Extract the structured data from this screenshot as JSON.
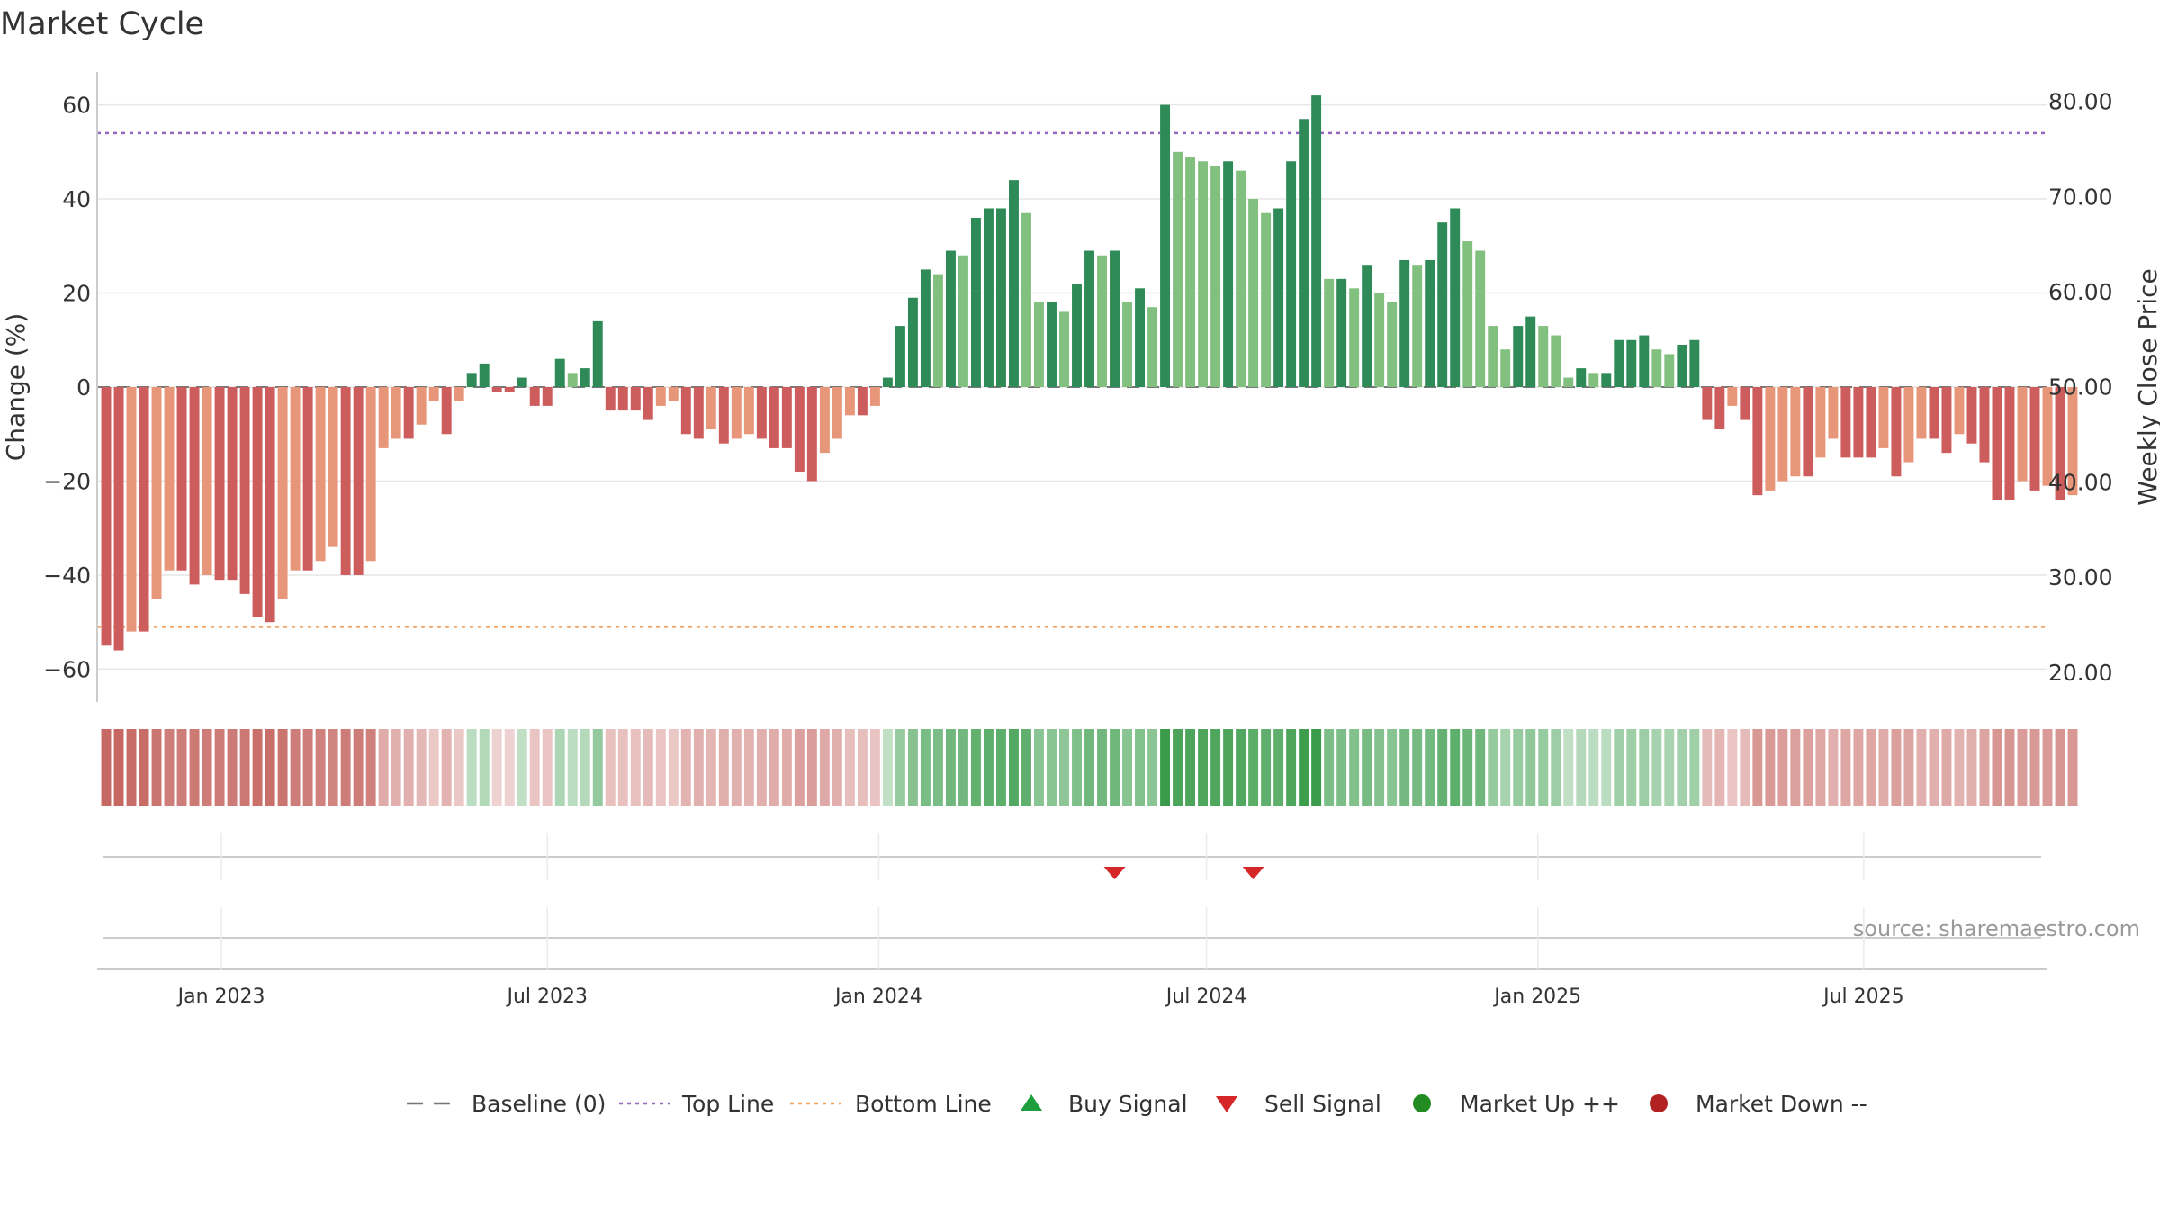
{
  "chart_data": {
    "type": "bar",
    "title": "Market Cycle",
    "ylabel_left": "Change (%)",
    "ylabel_right": "Weekly Close Price",
    "source": "source: sharemaestro.com",
    "ylim": [
      -67,
      67
    ],
    "yticks": [
      60,
      40,
      20,
      0,
      -20,
      -40,
      -60
    ],
    "ytick_labels": [
      "60",
      "40",
      "20",
      "0",
      "−20",
      "−40",
      "−60"
    ],
    "y2lim": [
      16.86,
      83.09
    ],
    "y2ticks": [
      80,
      70,
      60,
      50,
      40,
      30,
      20
    ],
    "y2tick_labels": [
      "80.00",
      "70.00",
      "60.00",
      "50.00",
      "40.00",
      "30.00",
      "20.00"
    ],
    "x_range": [
      "2022-10-24",
      "2025-10-11"
    ],
    "xticks": [
      "2023-01-01",
      "2023-07-01",
      "2024-01-01",
      "2024-07-01",
      "2025-01-01",
      "2025-07-01"
    ],
    "xtick_labels": [
      "Jan 2023",
      "Jul 2023",
      "Jan 2024",
      "Jul 2024",
      "Jan 2025",
      "Jul 2025"
    ],
    "first_week": "2022-10-29",
    "week_days": 7,
    "top_line": 54,
    "bottom_line": -51,
    "values": [
      -55,
      -56,
      -52,
      -52,
      -45,
      -39,
      -39,
      -42,
      -40,
      -41,
      -41,
      -44,
      -49,
      -50,
      -45,
      -39,
      -39,
      -37,
      -34,
      -40,
      -40,
      -37,
      -13,
      -11,
      -11,
      -8,
      -3,
      -10,
      -3,
      3,
      5,
      -1,
      -1,
      2,
      -4,
      -4,
      6,
      3,
      4,
      14,
      -5,
      -5,
      -5,
      -7,
      -4,
      -3,
      -10,
      -11,
      -9,
      -12,
      -11,
      -10,
      -11,
      -13,
      -13,
      -18,
      -20,
      -14,
      -11,
      -6,
      -6,
      -4,
      2,
      13,
      19,
      25,
      24,
      29,
      28,
      36,
      38,
      38,
      44,
      37,
      18,
      18,
      16,
      22,
      29,
      28,
      29,
      18,
      21,
      17,
      60,
      50,
      49,
      48,
      47,
      48,
      46,
      40,
      37,
      38,
      48,
      57,
      62,
      23,
      23,
      21,
      26,
      20,
      18,
      27,
      26,
      27,
      35,
      38,
      31,
      29,
      13,
      8,
      13,
      15,
      13,
      11,
      2,
      4,
      3,
      3,
      10,
      10,
      11,
      8,
      7,
      9,
      10,
      -7,
      -9,
      -4,
      -7,
      -23,
      -22,
      -20,
      -19,
      -19,
      -15,
      -11,
      -15,
      -15,
      -15,
      -13,
      -19,
      -16,
      -11,
      -11,
      -14,
      -10,
      -12,
      -16,
      -24,
      -24,
      -20,
      -22,
      -21,
      -24,
      -23
    ],
    "colors": {
      "up_strong": "#2e8b57",
      "up_light": "#82c07f",
      "down_strong": "#cd5c5c",
      "down_light": "#e8967a",
      "top_line": "#9467bd",
      "bottom_line": "#f0a35e",
      "baseline": "#777777",
      "buy_signal": "#1e9e3c",
      "sell_signal": "#d62728",
      "market_up": "#228b22",
      "market_down": "#b22222"
    },
    "sell_signals": [
      "2024-05-11",
      "2024-07-27"
    ],
    "buy_signals": [],
    "legend": [
      {
        "label": "Baseline (0)",
        "symbol": "dashed",
        "color": "#777777"
      },
      {
        "label": "Top Line",
        "symbol": "dotted",
        "color": "#9467bd"
      },
      {
        "label": "Bottom Line",
        "symbol": "dotted",
        "color": "#f0a35e"
      },
      {
        "label": "Buy Signal",
        "symbol": "triangle-up",
        "color": "#1e9e3c"
      },
      {
        "label": "Sell Signal",
        "symbol": "triangle-down",
        "color": "#d62728"
      },
      {
        "label": "Market Up ++",
        "symbol": "circle",
        "color": "#228b22"
      },
      {
        "label": "Market Down --",
        "symbol": "circle",
        "color": "#b22222"
      }
    ],
    "legend_position": "bottom-center",
    "grid": true
  }
}
